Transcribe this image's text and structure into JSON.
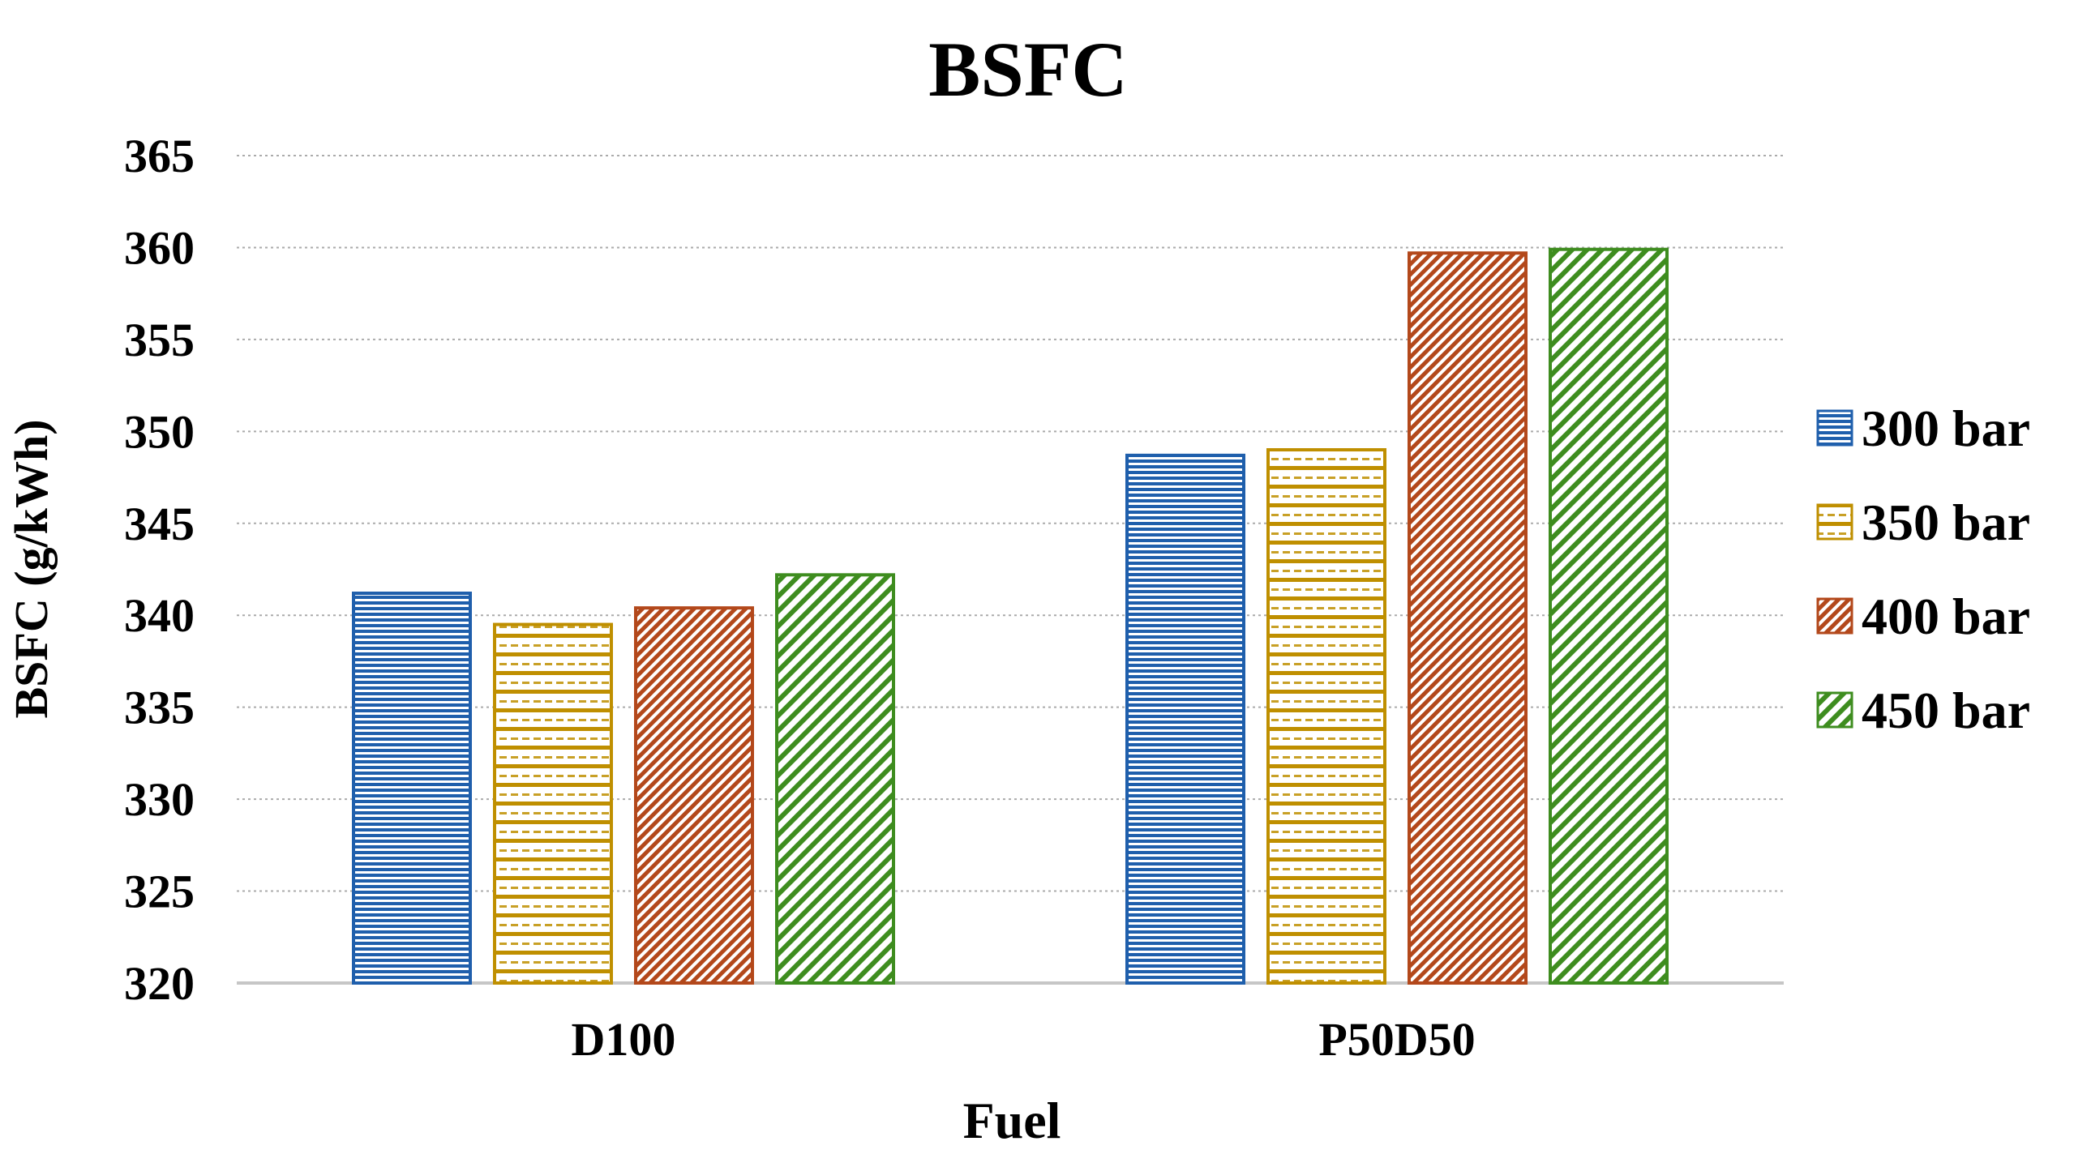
{
  "chart_data": {
    "type": "bar",
    "title": "BSFC",
    "xlabel": "Fuel",
    "ylabel": "BSFC (g/kWh)",
    "ylim": [
      320,
      365
    ],
    "ytick_step": 5,
    "ytick_labels": [
      "320",
      "325",
      "330",
      "335",
      "340",
      "345",
      "350",
      "355",
      "360",
      "365"
    ],
    "grid": "horizontal dashed gray lines",
    "legend_position": "right",
    "categories": [
      "D100",
      "P50D50"
    ],
    "series": [
      {
        "name": "300 bar",
        "values": [
          341.2,
          348.7
        ],
        "color": "#1F5FAC",
        "pattern": "horizontal-lines-dense"
      },
      {
        "name": "350 bar",
        "values": [
          339.5,
          349.0
        ],
        "color": "#BF8F00",
        "pattern": "horizontal-lines-dashed"
      },
      {
        "name": "400 bar",
        "values": [
          340.4,
          359.7
        ],
        "color": "#B3481B",
        "pattern": "diagonal-hatch-dense"
      },
      {
        "name": "450 bar",
        "values": [
          342.2,
          359.9
        ],
        "color": "#3E8D1F",
        "pattern": "diagonal-hatch-sparse"
      }
    ],
    "colors": {
      "grid": "#ABABAB",
      "axis_line": "#C6C6C6",
      "text": "#000000",
      "background": "#FFFFFF"
    }
  }
}
